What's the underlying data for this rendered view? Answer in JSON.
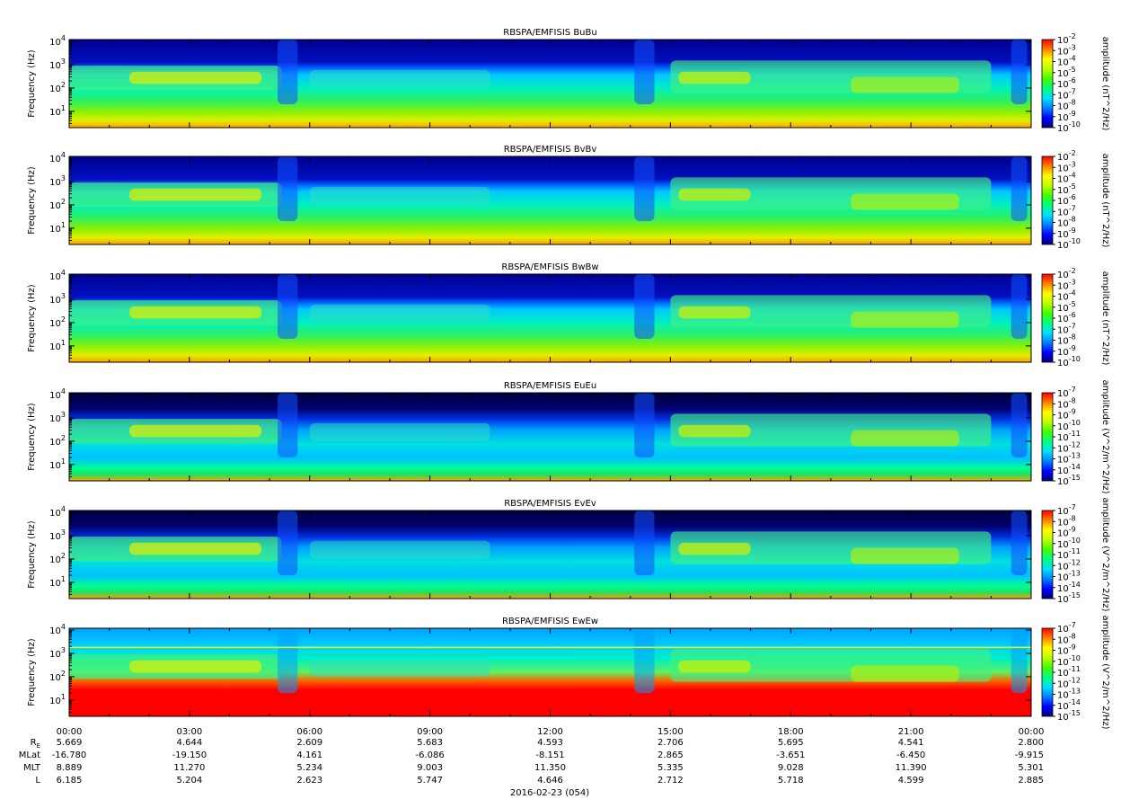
{
  "chart_data": {
    "type": "heatmap",
    "date_label": "2016-02-23 (054)",
    "x_ticks": [
      "00:00",
      "03:00",
      "06:00",
      "09:00",
      "12:00",
      "15:00",
      "18:00",
      "21:00",
      "00:00"
    ],
    "ylabel": "Frequency (Hz)",
    "ylim": [
      2,
      12000
    ],
    "y_scale": "log",
    "y_ticks": [
      {
        "base": "10",
        "exp": "4",
        "value": 10000
      },
      {
        "base": "10",
        "exp": "3",
        "value": 1000
      },
      {
        "base": "10",
        "exp": "2",
        "value": 100
      },
      {
        "base": "10",
        "exp": "1",
        "value": 10
      }
    ],
    "panels": [
      {
        "title": "RBSPA/EMFISIS  BuBu",
        "type": "B",
        "cbar_label": "amplitude (nT^2/Hz)",
        "cbar_ticks": [
          {
            "base": "10",
            "exp": "-2"
          },
          {
            "base": "10",
            "exp": "-3"
          },
          {
            "base": "10",
            "exp": "-4"
          },
          {
            "base": "10",
            "exp": "-5"
          },
          {
            "base": "10",
            "exp": "-6"
          },
          {
            "base": "10",
            "exp": "-7"
          },
          {
            "base": "10",
            "exp": "-8"
          },
          {
            "base": "10",
            "exp": "-9"
          },
          {
            "base": "10",
            "exp": "-10"
          }
        ]
      },
      {
        "title": "RBSPA/EMFISIS  BvBv",
        "type": "B",
        "cbar_label": "amplitude (nT^2/Hz)",
        "cbar_ticks": [
          {
            "base": "10",
            "exp": "-2"
          },
          {
            "base": "10",
            "exp": "-3"
          },
          {
            "base": "10",
            "exp": "-4"
          },
          {
            "base": "10",
            "exp": "-5"
          },
          {
            "base": "10",
            "exp": "-6"
          },
          {
            "base": "10",
            "exp": "-7"
          },
          {
            "base": "10",
            "exp": "-8"
          },
          {
            "base": "10",
            "exp": "-9"
          },
          {
            "base": "10",
            "exp": "-10"
          }
        ]
      },
      {
        "title": "RBSPA/EMFISIS  BwBw",
        "type": "B",
        "cbar_label": "amplitude (nT^2/Hz)",
        "cbar_ticks": [
          {
            "base": "10",
            "exp": "-2"
          },
          {
            "base": "10",
            "exp": "-3"
          },
          {
            "base": "10",
            "exp": "-4"
          },
          {
            "base": "10",
            "exp": "-5"
          },
          {
            "base": "10",
            "exp": "-6"
          },
          {
            "base": "10",
            "exp": "-7"
          },
          {
            "base": "10",
            "exp": "-8"
          },
          {
            "base": "10",
            "exp": "-9"
          },
          {
            "base": "10",
            "exp": "-10"
          }
        ]
      },
      {
        "title": "RBSPA/EMFISIS  EuEu",
        "type": "E",
        "cbar_label": "amplitude (V^2/m^2/Hz)",
        "cbar_ticks": [
          {
            "base": "10",
            "exp": "-7"
          },
          {
            "base": "10",
            "exp": "-8"
          },
          {
            "base": "10",
            "exp": "-9"
          },
          {
            "base": "10",
            "exp": "-10"
          },
          {
            "base": "10",
            "exp": "-11"
          },
          {
            "base": "10",
            "exp": "-12"
          },
          {
            "base": "10",
            "exp": "-13"
          },
          {
            "base": "10",
            "exp": "-14"
          },
          {
            "base": "10",
            "exp": "-15"
          }
        ]
      },
      {
        "title": "RBSPA/EMFISIS  EvEv",
        "type": "E",
        "cbar_label": "amplitude (V^2/m^2/Hz)",
        "cbar_ticks": [
          {
            "base": "10",
            "exp": "-7"
          },
          {
            "base": "10",
            "exp": "-8"
          },
          {
            "base": "10",
            "exp": "-9"
          },
          {
            "base": "10",
            "exp": "-10"
          },
          {
            "base": "10",
            "exp": "-11"
          },
          {
            "base": "10",
            "exp": "-12"
          },
          {
            "base": "10",
            "exp": "-13"
          },
          {
            "base": "10",
            "exp": "-14"
          },
          {
            "base": "10",
            "exp": "-15"
          }
        ]
      },
      {
        "title": "RBSPA/EMFISIS  EwEw",
        "type": "Ew",
        "cbar_label": "amplitude (V^2/m^2/Hz)",
        "cbar_ticks": [
          {
            "base": "10",
            "exp": "-7"
          },
          {
            "base": "10",
            "exp": "-8"
          },
          {
            "base": "10",
            "exp": "-9"
          },
          {
            "base": "10",
            "exp": "-10"
          },
          {
            "base": "10",
            "exp": "-11"
          },
          {
            "base": "10",
            "exp": "-12"
          },
          {
            "base": "10",
            "exp": "-13"
          },
          {
            "base": "10",
            "exp": "-14"
          },
          {
            "base": "10",
            "exp": "-15"
          }
        ]
      }
    ],
    "ephemeris": [
      {
        "label": "R",
        "sub": "E",
        "values": [
          "5.669",
          "4.644",
          "2.609",
          "5.683",
          "4.593",
          "2.706",
          "5.695",
          "4.541",
          "2.800"
        ]
      },
      {
        "label": "MLat",
        "values": [
          "-16.780",
          "-19.150",
          "4.161",
          "-6.086",
          "-8.151",
          "2.865",
          "-3.651",
          "-6.450",
          "-9.915"
        ]
      },
      {
        "label": "MLT",
        "values": [
          "8.889",
          "11.270",
          "5.234",
          "9.003",
          "11.350",
          "5.335",
          "9.028",
          "11.390",
          "5.301"
        ]
      },
      {
        "label": "L",
        "values": [
          "6.185",
          "5.204",
          "2.623",
          "5.747",
          "4.646",
          "2.712",
          "5.718",
          "4.599",
          "2.885"
        ]
      }
    ],
    "colorscale": [
      "#00007a",
      "#0000ff",
      "#0080ff",
      "#00e0ff",
      "#00ff80",
      "#40ff00",
      "#c0ff00",
      "#ffff00",
      "#ff8000",
      "#ff0000"
    ]
  }
}
